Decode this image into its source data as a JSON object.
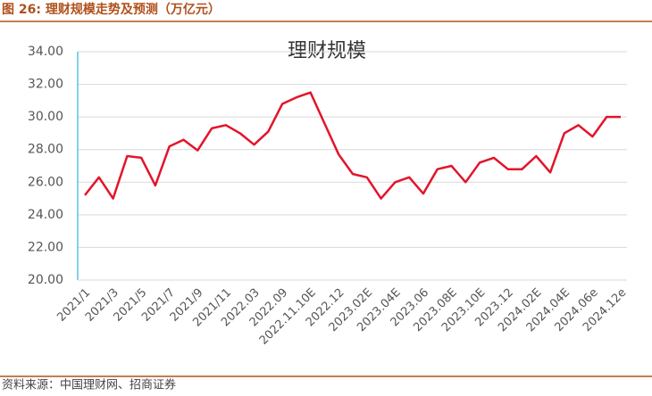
{
  "header": {
    "title": "图 26:  理财规模走势及预测（万亿元）"
  },
  "chart_data": {
    "type": "line",
    "title": "理财规模",
    "categories": [
      "2021/1",
      null,
      "2021/3",
      null,
      "2021/5",
      null,
      "2021/7",
      null,
      "2021/9",
      null,
      "2021/11",
      null,
      "2022.03",
      null,
      "2022.09",
      null,
      "2022.11.10E",
      null,
      "2022.12",
      null,
      "2023.02E",
      null,
      "2023.04E",
      null,
      "2023.06",
      null,
      "2023.08E",
      null,
      "2023.10E",
      null,
      "2023.12",
      null,
      "2024.02E",
      null,
      "2024.04E",
      null,
      "2024.06e",
      null,
      "2024.12e"
    ],
    "series": [
      {
        "name": "理财规模",
        "color": "#e3142b",
        "values": [
          25.2,
          26.3,
          25.0,
          27.6,
          27.5,
          25.8,
          28.2,
          28.6,
          27.95,
          29.3,
          29.5,
          29.0,
          28.3,
          29.1,
          30.8,
          31.2,
          31.5,
          29.6,
          27.7,
          26.5,
          26.3,
          25.0,
          26.0,
          26.3,
          25.3,
          26.8,
          27.0,
          26.0,
          27.2,
          27.5,
          26.8,
          26.8,
          27.6,
          26.6,
          29.0,
          29.5,
          28.8,
          30.0,
          30.0
        ]
      }
    ],
    "ylim": [
      20,
      34
    ],
    "yticks": [
      {
        "value": 20,
        "label": "20.00"
      },
      {
        "value": 22,
        "label": "22.00"
      },
      {
        "value": 24,
        "label": "24.00"
      },
      {
        "value": 26,
        "label": "26.00"
      },
      {
        "value": 28,
        "label": "28.00"
      },
      {
        "value": 30,
        "label": "30.00"
      },
      {
        "value": 32,
        "label": "32.00"
      },
      {
        "value": 34,
        "label": "34.00"
      }
    ],
    "grid": true
  },
  "footer": {
    "source": "资料来源：中国理财网、招商证券"
  }
}
